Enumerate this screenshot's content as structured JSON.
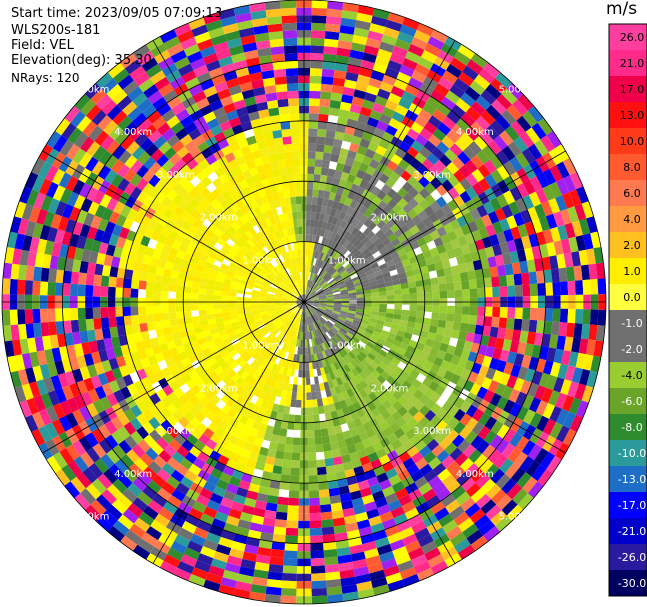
{
  "header": {
    "start_time": "Start time: 2023/09/05 07:09:13",
    "instrument": "WLS200s-181",
    "field": "Field: VEL",
    "elevation": "Elevation(deg): 35.30",
    "nrays": "NRays: 120"
  },
  "colorbar": {
    "title": "m/s",
    "ticks": [
      "26.0",
      "21.0",
      "17.0",
      "13.0",
      "10.0",
      "8.0",
      "6.0",
      "4.0",
      "2.0",
      "1.0",
      "0.0",
      "-1.0",
      "-2.0",
      "-4.0",
      "-6.0",
      "-8.0",
      "-10.0",
      "-13.0",
      "-17.0",
      "-21.0",
      "-26.0",
      "-30.0"
    ],
    "colors": [
      "#ff3fa0",
      "#ff2a8a",
      "#f0004a",
      "#ff1010",
      "#ff3a18",
      "#ff5a30",
      "#ff7a50",
      "#ff9a40",
      "#ffc020",
      "#ffee00",
      "#ffff40",
      "#707070",
      "#707070",
      "#9acd32",
      "#6aa52a",
      "#2e8b2e",
      "#2a9a9a",
      "#1e6ec8",
      "#0000ff",
      "#0000cc",
      "#2a1aa0",
      "#000060"
    ]
  },
  "chart_data": {
    "type": "heatmap",
    "subtype": "polar PPI (plan position indicator) Doppler velocity scan",
    "field": "VEL",
    "units": "m/s",
    "elevation_deg": 35.3,
    "nrays": 120,
    "range_ring_labels": [
      "1.00km",
      "2.00km",
      "3.00km",
      "4.00km",
      "5.00km"
    ],
    "spoke_directions_deg": [
      0,
      30,
      60,
      90,
      120,
      150,
      180,
      210,
      240,
      270,
      300,
      330
    ],
    "pattern": {
      "inner_center": "grey and yellow-green velocities near the origin (approx. -2 to +1 m/s)",
      "west_lobe": "yellow band (approx. +2 to +4 m/s) out to about 3 km",
      "east_lobe": "olive/green band (approx. -1 to -4 m/s) out to about 3 km",
      "outer_region": "noise: random full-range colors beyond about 3 km"
    }
  }
}
